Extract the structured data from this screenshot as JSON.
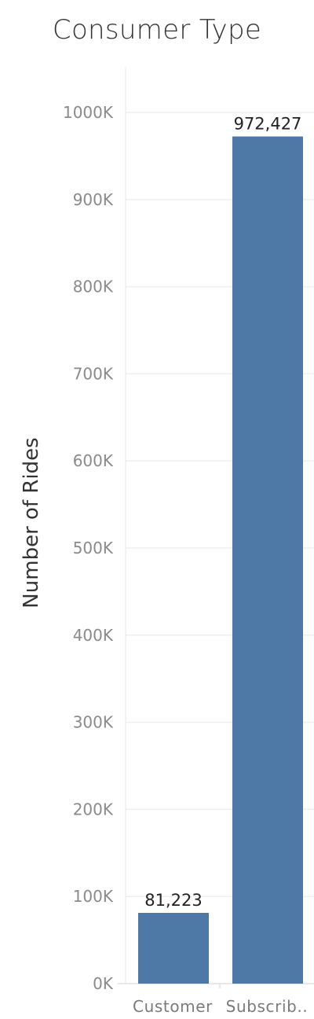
{
  "chart_data": {
    "type": "bar",
    "title": "Consumer Type",
    "xlabel": "",
    "ylabel": "Number of Rides",
    "categories": [
      "Customer",
      "Subscrib.."
    ],
    "values": [
      81223,
      972427
    ],
    "value_labels": [
      "81,223",
      "972,427"
    ],
    "ylim": [
      0,
      1050000
    ],
    "yticks": [
      0,
      100000,
      200000,
      300000,
      400000,
      500000,
      600000,
      700000,
      800000,
      900000,
      1000000
    ],
    "ytick_labels": [
      "0K",
      "100K",
      "200K",
      "300K",
      "400K",
      "500K",
      "600K",
      "700K",
      "800K",
      "900K",
      "1000K"
    ],
    "grid": true,
    "colors": {
      "bar": "#4e79a7",
      "grid": "#efefef",
      "axis": "#e2e2e2"
    }
  }
}
